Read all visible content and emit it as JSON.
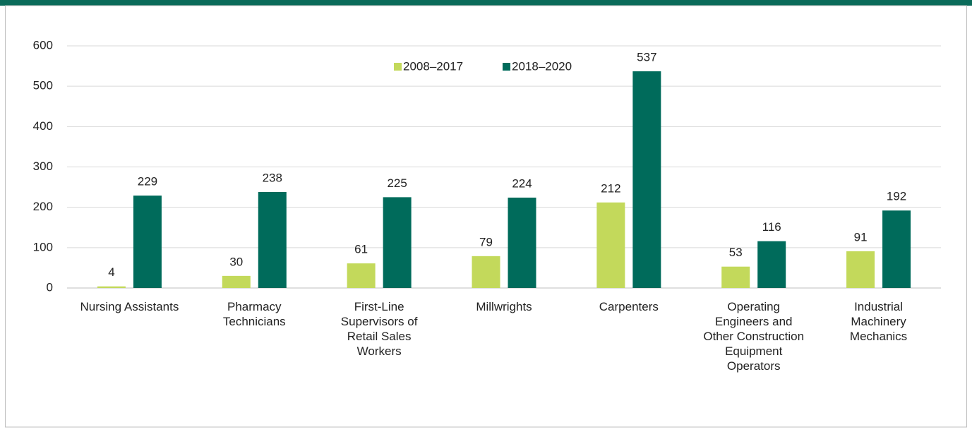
{
  "chart_data": {
    "type": "bar",
    "categories": [
      "Nursing Assistants",
      "Pharmacy Technicians",
      "First-Line Supervisors of Retail Sales Workers",
      "Millwrights",
      "Carpenters",
      "Operating Engineers and Other Construction Equipment Operators",
      "Industrial Machinery Mechanics"
    ],
    "series": [
      {
        "name": "2008–2017",
        "color": "#c3d95b",
        "values": [
          4,
          30,
          61,
          79,
          212,
          53,
          91
        ]
      },
      {
        "name": "2018–2020",
        "color": "#006b5b",
        "values": [
          229,
          238,
          225,
          224,
          537,
          116,
          192
        ]
      }
    ],
    "ylim": [
      0,
      600
    ],
    "yticks": [
      0,
      100,
      200,
      300,
      400,
      500,
      600
    ],
    "grid": true,
    "legend": "top"
  }
}
